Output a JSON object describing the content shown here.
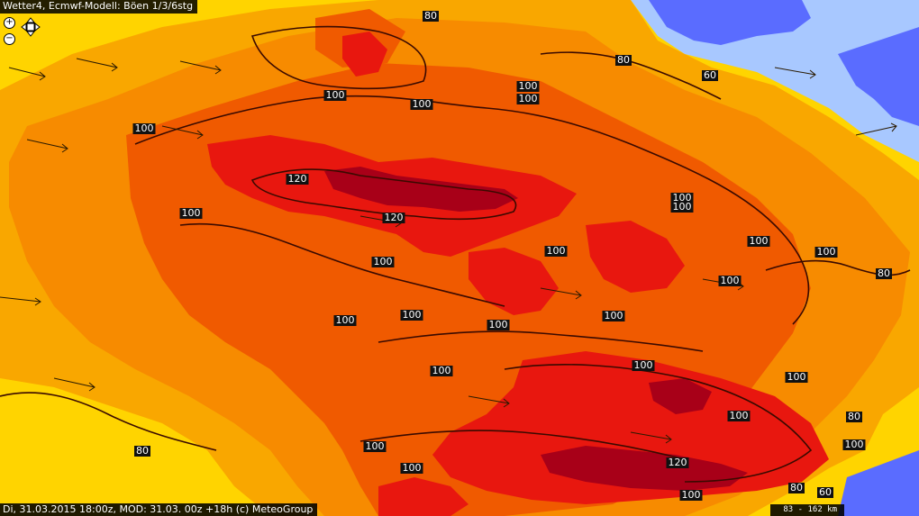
{
  "header": {
    "title": "Wetter4, Ecmwf-Modell: Böen 1/3/6stg"
  },
  "footer": {
    "info": "Di, 31.03.2015 18:00z, MOD: 31.03. 00z +18h (c) MeteoGroup"
  },
  "scale": {
    "label": "83 - 162 km"
  },
  "controls": {
    "zoom_in": "+",
    "zoom_out": "−"
  },
  "colors": {
    "ocean_blue": "#5a6cff",
    "light_blue": "#a8c8ff",
    "yellow": "#ffd400",
    "light_orange": "#f9a700",
    "orange": "#f78b00",
    "dark_orange": "#f05a00",
    "red": "#e8170f",
    "dark_red": "#a80018",
    "label_bg": "#111111"
  },
  "isoline_labels": [
    "80",
    "80",
    "60",
    "100",
    "100",
    "100",
    "100",
    "100",
    "120",
    "120",
    "100",
    "100",
    "100",
    "100",
    "100",
    "100",
    "100",
    "100",
    "100",
    "100",
    "100",
    "80",
    "100",
    "100",
    "100",
    "100",
    "80",
    "80",
    "100",
    "100",
    "120",
    "100",
    "100",
    "80",
    "60",
    "100"
  ]
}
